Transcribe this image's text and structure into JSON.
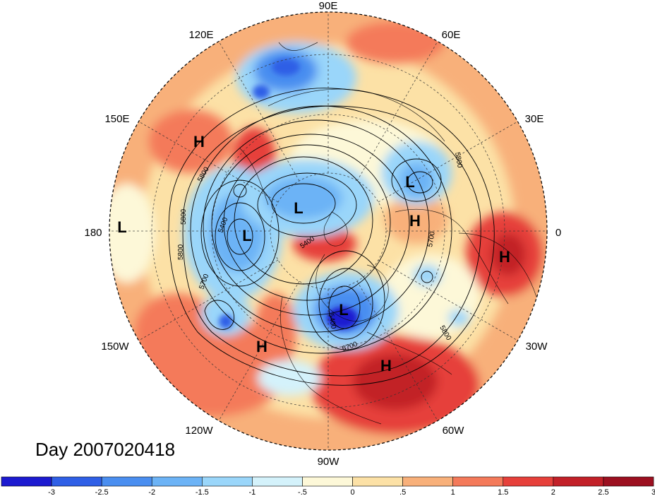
{
  "map": {
    "projection": "north-polar-stereographic",
    "longitude_labels": [
      {
        "key": "90e",
        "text": "90E"
      },
      {
        "key": "60e",
        "text": "60E"
      },
      {
        "key": "30e",
        "text": "30E"
      },
      {
        "key": "0",
        "text": "0"
      },
      {
        "key": "30w",
        "text": "30W"
      },
      {
        "key": "60w",
        "text": "60W"
      },
      {
        "key": "90w",
        "text": "90W"
      },
      {
        "key": "120w",
        "text": "120W"
      },
      {
        "key": "150w",
        "text": "150W"
      },
      {
        "key": "180",
        "text": "180"
      },
      {
        "key": "150e",
        "text": "150E"
      },
      {
        "key": "120e",
        "text": "120E"
      }
    ],
    "pressure_centers": [
      {
        "key": "h-nw-pacific",
        "type": "H"
      },
      {
        "key": "l-dateline",
        "type": "L"
      },
      {
        "key": "l-bering",
        "type": "L"
      },
      {
        "key": "l-siberia",
        "type": "L"
      },
      {
        "key": "l-scandinavia",
        "type": "L"
      },
      {
        "key": "h-europe",
        "type": "H"
      },
      {
        "key": "h-north-africa",
        "type": "H"
      },
      {
        "key": "l-hudson",
        "type": "L"
      },
      {
        "key": "h-west-na",
        "type": "H"
      },
      {
        "key": "h-atlantic",
        "type": "H"
      }
    ],
    "contour_labels": [
      {
        "key": "c1",
        "text": "5800"
      },
      {
        "key": "c2",
        "text": "5800"
      },
      {
        "key": "c3",
        "text": "5800"
      },
      {
        "key": "c4",
        "text": "5400"
      },
      {
        "key": "c5",
        "text": "5700"
      },
      {
        "key": "c6",
        "text": "5400"
      },
      {
        "key": "c7",
        "text": "5400"
      },
      {
        "key": "c8",
        "text": "5700"
      },
      {
        "key": "c9",
        "text": "5800"
      },
      {
        "key": "c10",
        "text": "5800"
      },
      {
        "key": "c11",
        "text": "5700"
      }
    ]
  },
  "day_label": "Day 2007020418",
  "colorbar": {
    "colors": [
      "#1c1ad0",
      "#2f5fe6",
      "#4a8ef0",
      "#6cb3f6",
      "#9ad6fa",
      "#d4f2fb",
      "#fdf8d8",
      "#fce1a6",
      "#f8b07a",
      "#f47a5a",
      "#e6403a",
      "#c22028",
      "#9c1020"
    ],
    "ticks": [
      "-3",
      "-2.5",
      "-2",
      "-1.5",
      "-1",
      "-.5",
      "0",
      ".5",
      "1",
      "1.5",
      "2",
      "2.5",
      "3"
    ]
  }
}
